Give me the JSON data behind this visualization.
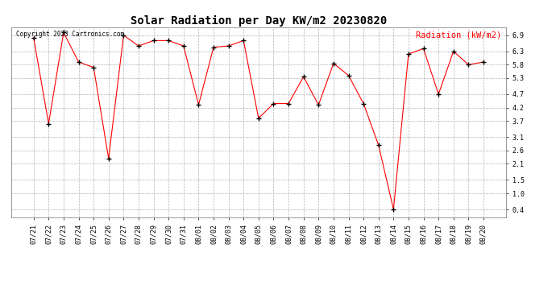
{
  "title": "Solar Radiation per Day KW/m2 20230820",
  "legend_label": "Radiation (kW/m2)",
  "copyright_text": "Copyright 2023 Cartronics.com",
  "line_color": "red",
  "marker_color": "black",
  "background_color": "#ffffff",
  "grid_color": "#aaaaaa",
  "yticks": [
    0.4,
    1.0,
    1.5,
    2.1,
    2.6,
    3.1,
    3.7,
    4.2,
    4.7,
    5.3,
    5.8,
    6.3,
    6.9
  ],
  "ylim": [
    0.1,
    7.2
  ],
  "dates": [
    "07/21",
    "07/22",
    "07/23",
    "07/24",
    "07/25",
    "07/26",
    "07/27",
    "07/28",
    "07/29",
    "07/30",
    "07/31",
    "08/01",
    "08/02",
    "08/03",
    "08/04",
    "08/05",
    "08/06",
    "08/07",
    "08/08",
    "08/09",
    "08/10",
    "08/11",
    "08/12",
    "08/13",
    "08/14",
    "08/15",
    "08/16",
    "08/17",
    "08/18",
    "08/19",
    "08/20"
  ],
  "values": [
    6.8,
    3.6,
    7.0,
    5.9,
    5.7,
    2.3,
    6.9,
    6.5,
    6.7,
    6.7,
    6.5,
    4.3,
    6.45,
    6.5,
    6.7,
    3.8,
    4.35,
    4.35,
    5.35,
    4.3,
    5.85,
    5.4,
    4.35,
    2.8,
    0.4,
    6.2,
    6.4,
    4.7,
    6.3,
    5.8,
    5.9
  ],
  "title_fontsize": 10,
  "tick_fontsize": 6,
  "legend_fontsize": 7.5,
  "copyright_fontsize": 5.5
}
